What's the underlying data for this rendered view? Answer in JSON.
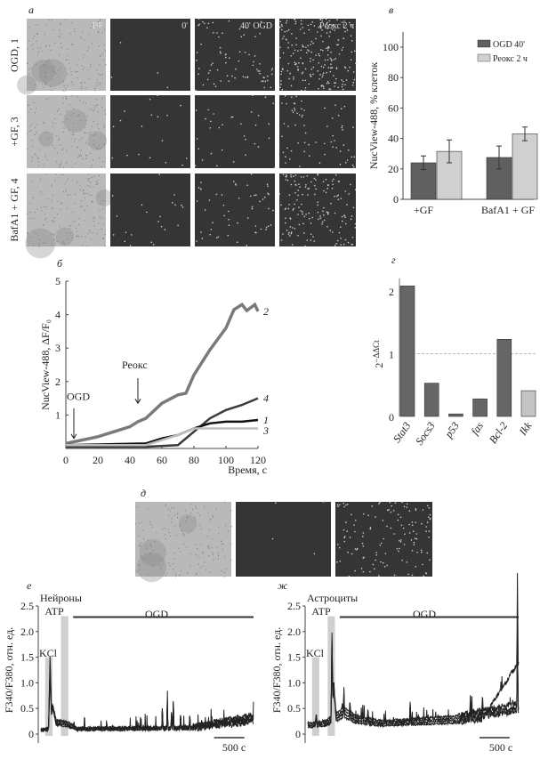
{
  "panels": {
    "a": {
      "label": "а",
      "column_titles": [
        "BF",
        "0'",
        "40' OGD",
        "Реокс 2 ч"
      ],
      "row_labels": [
        "OGD, 1",
        "+GF, 3",
        "BafA1 + GF, 4"
      ],
      "relative_dot_density": [
        [
          0,
          0.02,
          0.35,
          1.0
        ],
        [
          0,
          0.08,
          0.15,
          0.3
        ],
        [
          0,
          0.1,
          0.25,
          0.7
        ]
      ]
    },
    "d": {
      "label": "д",
      "relative_dot_density": [
        0,
        0.02,
        0.6
      ]
    }
  },
  "chart_data": [
    {
      "id": "v",
      "label": "в",
      "type": "bar",
      "categories": [
        "+GF",
        "BafA1 + GF"
      ],
      "series": [
        {
          "name": "OGD 40'",
          "values": [
            24,
            27.5
          ],
          "errors": [
            4.5,
            7.5
          ],
          "color": "#606060"
        },
        {
          "name": "Реокс 2 ч",
          "values": [
            31.5,
            43
          ],
          "errors": [
            7.5,
            4.5
          ],
          "color": "#d0d0d0"
        }
      ],
      "ylabel": "NucView-488, % клеток",
      "ylim": [
        0,
        110
      ],
      "yticks": [
        0,
        20,
        40,
        60,
        80,
        100
      ],
      "legend": "top-right"
    },
    {
      "id": "b",
      "label": "б",
      "type": "line",
      "xlabel": "Время, с",
      "ylabel": "NucView-488, ΔF/F₀",
      "xlim": [
        0,
        120
      ],
      "ylim": [
        0,
        5
      ],
      "xticks": [
        0,
        20,
        40,
        60,
        80,
        100,
        120
      ],
      "yticks": [
        1,
        2,
        3,
        4,
        5
      ],
      "annotations": [
        {
          "text": "OGD",
          "x": 5
        },
        {
          "text": "Реокс",
          "x": 45
        }
      ],
      "series": [
        {
          "name": "2",
          "color": "#7a7a7a",
          "x": [
            0,
            10,
            20,
            30,
            40,
            45,
            50,
            60,
            70,
            75,
            80,
            90,
            100,
            105,
            110,
            113,
            118,
            120
          ],
          "y": [
            0.15,
            0.25,
            0.35,
            0.5,
            0.65,
            0.8,
            0.9,
            1.35,
            1.6,
            1.65,
            2.2,
            2.95,
            3.6,
            4.15,
            4.3,
            4.12,
            4.3,
            4.1
          ]
        },
        {
          "name": "4",
          "color": "#3a3a3a",
          "x": [
            0,
            50,
            70,
            80,
            90,
            100,
            110,
            120
          ],
          "y": [
            0.05,
            0.05,
            0.1,
            0.5,
            0.9,
            1.15,
            1.3,
            1.5
          ]
        },
        {
          "name": "1",
          "color": "#111111",
          "x": [
            0,
            50,
            60,
            70,
            80,
            90,
            100,
            110,
            120
          ],
          "y": [
            0.1,
            0.15,
            0.3,
            0.4,
            0.6,
            0.75,
            0.8,
            0.8,
            0.85
          ]
        },
        {
          "name": "3",
          "color": "#bdbdbd",
          "x": [
            0,
            50,
            60,
            70,
            80,
            90,
            100,
            120
          ],
          "y": [
            0.1,
            0.1,
            0.25,
            0.4,
            0.6,
            0.6,
            0.6,
            0.6
          ]
        }
      ]
    },
    {
      "id": "g",
      "label": "г",
      "type": "bar",
      "categories": [
        "Stat3",
        "Socs3",
        "p53",
        "fas",
        "Bcl-2",
        "Ikk"
      ],
      "values": [
        2.08,
        0.53,
        0.04,
        0.28,
        1.23,
        0.41
      ],
      "colors": [
        "#666666",
        "#666666",
        "#666666",
        "#666666",
        "#666666",
        "#c4c4c4"
      ],
      "ylabel_base": "2",
      "ylabel_exp": "−ΔΔCt",
      "ylim": [
        0,
        2.2
      ],
      "yticks": [
        0,
        1,
        2
      ],
      "reference_line": 1
    },
    {
      "id": "e",
      "label": "е",
      "title": "Нейроны",
      "type": "line",
      "ylabel": "F340/F380, отн. ед.",
      "ylim": [
        0,
        2.5
      ],
      "yticks": [
        "0",
        "0.5",
        "1.0",
        "1.5",
        "2.0",
        "2.5"
      ],
      "xlim_s": [
        0,
        3500
      ],
      "scale_bar": "500 с",
      "stimuli": [
        {
          "name": "KCl",
          "start": 70,
          "end": 190,
          "level": 1.5
        },
        {
          "name": "ATP",
          "start": 330,
          "end": 450,
          "level": 2.3
        }
      ],
      "ogd": {
        "name": "OGD",
        "start": 530,
        "end": 3500
      },
      "baseline": {
        "t": [
          0,
          150,
          200,
          450,
          600,
          2500,
          3500
        ],
        "v": [
          0.08,
          0.1,
          0.25,
          0.2,
          0.1,
          0.12,
          0.3
        ]
      },
      "spikes": [
        [
          150,
          1.3,
          25
        ],
        [
          190,
          0.4,
          60
        ],
        [
          2000,
          0.5,
          10
        ],
        [
          2080,
          0.75,
          10
        ],
        [
          2150,
          0.4,
          10
        ],
        [
          2180,
          0.7,
          10
        ],
        [
          2300,
          0.35,
          10
        ],
        [
          2450,
          0.35,
          10
        ]
      ]
    },
    {
      "id": "zh",
      "label": "ж",
      "title": "Астроциты",
      "type": "line",
      "ylabel": "F340/F380, отн. ед.",
      "ylim": [
        0,
        2.5
      ],
      "yticks": [
        "0",
        "0.5",
        "1.0",
        "1.5",
        "2.0",
        "2.5"
      ],
      "xlim_s": [
        0,
        3500
      ],
      "scale_bar": "500 с",
      "stimuli": [
        {
          "name": "KCl",
          "start": 70,
          "end": 190,
          "level": 1.5
        },
        {
          "name": "ATP",
          "start": 330,
          "end": 450,
          "level": 2.3
        }
      ],
      "ogd": {
        "name": "OGD",
        "start": 530,
        "end": 3500
      },
      "baseline": {
        "t": [
          0,
          300,
          600,
          800,
          1200,
          2500,
          3000,
          3500
        ],
        "v": [
          0.18,
          0.22,
          0.45,
          0.3,
          0.22,
          0.3,
          0.4,
          0.5
        ]
      },
      "ramp": {
        "t": [
          2900,
          3500
        ],
        "v": [
          0.3,
          1.4
        ]
      },
      "spikes": [
        [
          140,
          0.2,
          15
        ],
        [
          400,
          1.75,
          15
        ],
        [
          430,
          0.8,
          40
        ],
        [
          600,
          0.4,
          10
        ],
        [
          700,
          0.35,
          10
        ],
        [
          1000,
          0.3,
          10
        ],
        [
          1700,
          0.5,
          10
        ],
        [
          2700,
          0.45,
          10
        ],
        [
          2900,
          0.45,
          10
        ],
        [
          3480,
          1.8,
          10
        ]
      ]
    }
  ]
}
